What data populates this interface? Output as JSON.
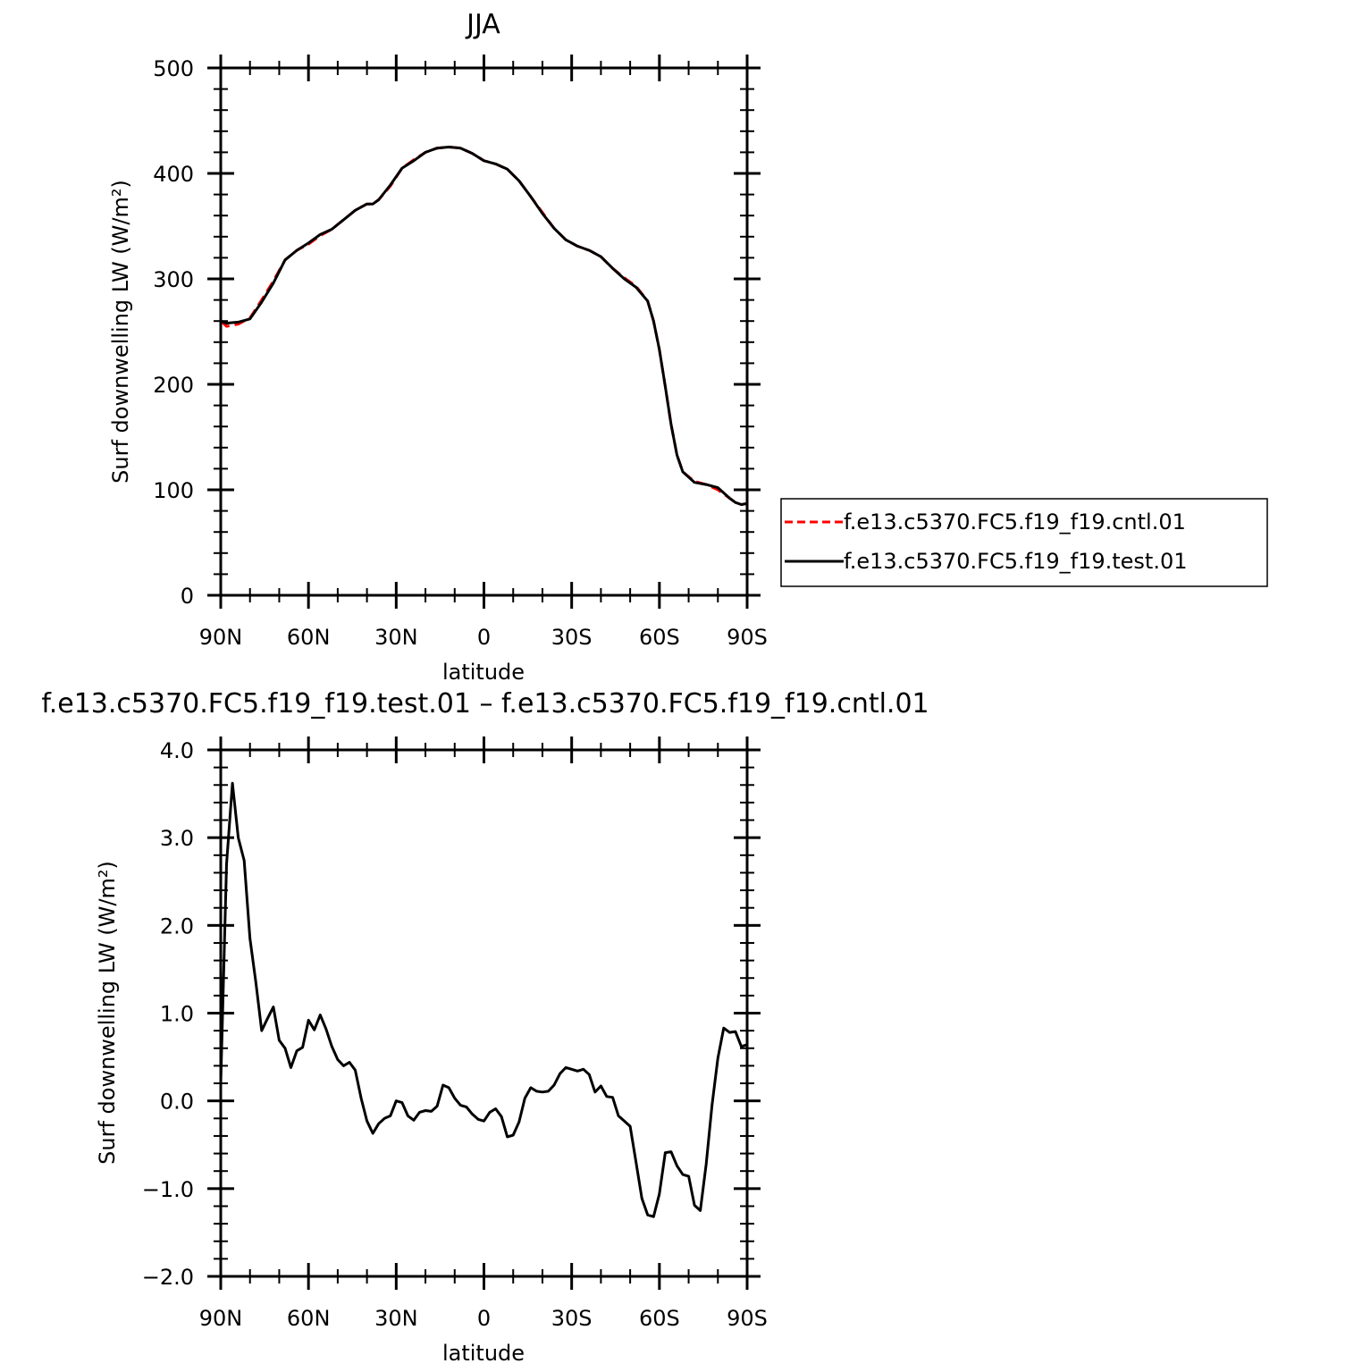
{
  "chart_data": [
    {
      "type": "line",
      "title": "JJA",
      "xlabel": "latitude",
      "ylabel": "Surf downwelling LW (W/m²)",
      "xlim": [
        90,
        -90
      ],
      "ylim": [
        0,
        500
      ],
      "x_ticks": [
        90,
        60,
        30,
        0,
        -30,
        -60,
        -90
      ],
      "x_tick_labels": [
        "90N",
        "60N",
        "30N",
        "0",
        "30S",
        "60S",
        "90S"
      ],
      "y_ticks": [
        0,
        100,
        200,
        300,
        400,
        500
      ],
      "y_tick_labels": [
        "0",
        "100",
        "200",
        "300",
        "400",
        "500"
      ],
      "legend_position": "right",
      "series": [
        {
          "name": "f.e13.c5370.FC5.f19_f19.cntl.01",
          "color": "#ff0000",
          "style": "dashed",
          "x": [
            90,
            88,
            84,
            80,
            76,
            72,
            68,
            64,
            60,
            56,
            52,
            48,
            44,
            40,
            38,
            36,
            32,
            28,
            24,
            20,
            16,
            12,
            8,
            4,
            0,
            -4,
            -8,
            -12,
            -16,
            -20,
            -24,
            -28,
            -32,
            -36,
            -40,
            -44,
            -48,
            -52,
            -56,
            -58,
            -60,
            -62,
            -64,
            -66,
            -68,
            -72,
            -76,
            -80,
            -84,
            -86,
            -88,
            -90
          ],
          "values": [
            260,
            255,
            257,
            263,
            280,
            298,
            318,
            327,
            333,
            341,
            347,
            356,
            365,
            371,
            371,
            375,
            388,
            405,
            413,
            420,
            424,
            425,
            424,
            419,
            412,
            409,
            404,
            393,
            378,
            363,
            348,
            337,
            331,
            327,
            321,
            310,
            301,
            293,
            279,
            260,
            233,
            198,
            162,
            133,
            117,
            108,
            105,
            100,
            92,
            88,
            86,
            87
          ]
        },
        {
          "name": "f.e13.c5370.FC5.f19_f19.test.01",
          "color": "#000000",
          "style": "solid",
          "x": [
            90,
            88,
            84,
            80,
            76,
            72,
            68,
            64,
            60,
            56,
            52,
            48,
            44,
            40,
            38,
            36,
            32,
            28,
            24,
            20,
            16,
            12,
            8,
            4,
            0,
            -4,
            -8,
            -12,
            -16,
            -20,
            -24,
            -28,
            -32,
            -36,
            -40,
            -44,
            -48,
            -52,
            -56,
            -58,
            -60,
            -62,
            -64,
            -66,
            -68,
            -72,
            -76,
            -80,
            -84,
            -86,
            -88,
            -90
          ],
          "values": [
            260,
            258,
            259,
            262,
            278,
            296,
            318,
            327,
            334,
            342,
            347,
            356,
            365,
            371,
            371,
            375,
            389,
            405,
            412,
            420,
            424,
            425,
            424,
            419,
            412,
            409,
            404,
            393,
            378,
            362,
            348,
            337,
            331,
            327,
            321,
            310,
            300,
            292,
            279,
            260,
            233,
            198,
            162,
            133,
            117,
            107,
            105,
            102,
            92,
            88,
            86,
            87
          ]
        }
      ]
    },
    {
      "type": "line",
      "title": "f.e13.c5370.FC5.f19_f19.test.01 – f.e13.c5370.FC5.f19_f19.cntl.01",
      "xlabel": "latitude",
      "ylabel": "Surf downwelling LW (W/m²)",
      "xlim": [
        90,
        -90
      ],
      "ylim": [
        -2.0,
        4.0
      ],
      "x_ticks": [
        90,
        60,
        30,
        0,
        -30,
        -60,
        -90
      ],
      "x_tick_labels": [
        "90N",
        "60N",
        "30N",
        "0",
        "30S",
        "60S",
        "90S"
      ],
      "y_ticks": [
        -2.0,
        -1.0,
        0.0,
        1.0,
        2.0,
        3.0,
        4.0
      ],
      "y_tick_labels": [
        "−2.0",
        "−1.0",
        "0.0",
        "1.0",
        "2.0",
        "3.0",
        "4.0"
      ],
      "series": [
        {
          "color": "#000000",
          "style": "solid",
          "x": [
            90,
            88,
            86,
            84,
            82,
            80,
            78,
            76,
            74,
            72,
            70,
            68,
            66,
            64,
            62,
            60,
            58,
            56,
            54,
            52,
            50,
            48,
            46,
            44,
            42,
            40,
            38,
            36,
            34,
            32,
            30,
            28,
            26,
            24,
            22,
            20,
            18,
            16,
            14,
            12,
            10,
            8,
            6,
            4,
            2,
            0,
            -2,
            -4,
            -6,
            -8,
            -10,
            -12,
            -14,
            -16,
            -18,
            -20,
            -22,
            -24,
            -26,
            -28,
            -30,
            -32,
            -34,
            -36,
            -38,
            -40,
            -42,
            -44,
            -46,
            -48,
            -50,
            -52,
            -54,
            -56,
            -58,
            -60,
            -62,
            -64,
            -66,
            -68,
            -70,
            -72,
            -74,
            -76,
            -78,
            -80,
            -82,
            -84,
            -86,
            -88,
            -90
          ],
          "values": [
            0.2,
            2.7,
            3.62,
            3.0,
            2.74,
            1.85,
            1.35,
            0.8,
            0.94,
            1.07,
            0.69,
            0.6,
            0.38,
            0.57,
            0.61,
            0.92,
            0.81,
            0.98,
            0.82,
            0.62,
            0.47,
            0.4,
            0.44,
            0.35,
            0.03,
            -0.23,
            -0.37,
            -0.26,
            -0.2,
            -0.17,
            0.0,
            -0.02,
            -0.17,
            -0.22,
            -0.13,
            -0.11,
            -0.12,
            -0.06,
            0.18,
            0.15,
            0.03,
            -0.05,
            -0.07,
            -0.15,
            -0.21,
            -0.23,
            -0.13,
            -0.09,
            -0.18,
            -0.41,
            -0.39,
            -0.24,
            0.03,
            0.15,
            0.11,
            0.1,
            0.11,
            0.18,
            0.31,
            0.38,
            0.36,
            0.34,
            0.36,
            0.3,
            0.1,
            0.17,
            0.05,
            0.04,
            -0.17,
            -0.23,
            -0.29,
            -0.7,
            -1.11,
            -1.3,
            -1.32,
            -1.06,
            -0.59,
            -0.58,
            -0.74,
            -0.84,
            -0.86,
            -1.19,
            -1.25,
            -0.72,
            -0.05,
            0.49,
            0.83,
            0.78,
            0.79,
            0.62,
            0.64
          ]
        }
      ]
    }
  ]
}
